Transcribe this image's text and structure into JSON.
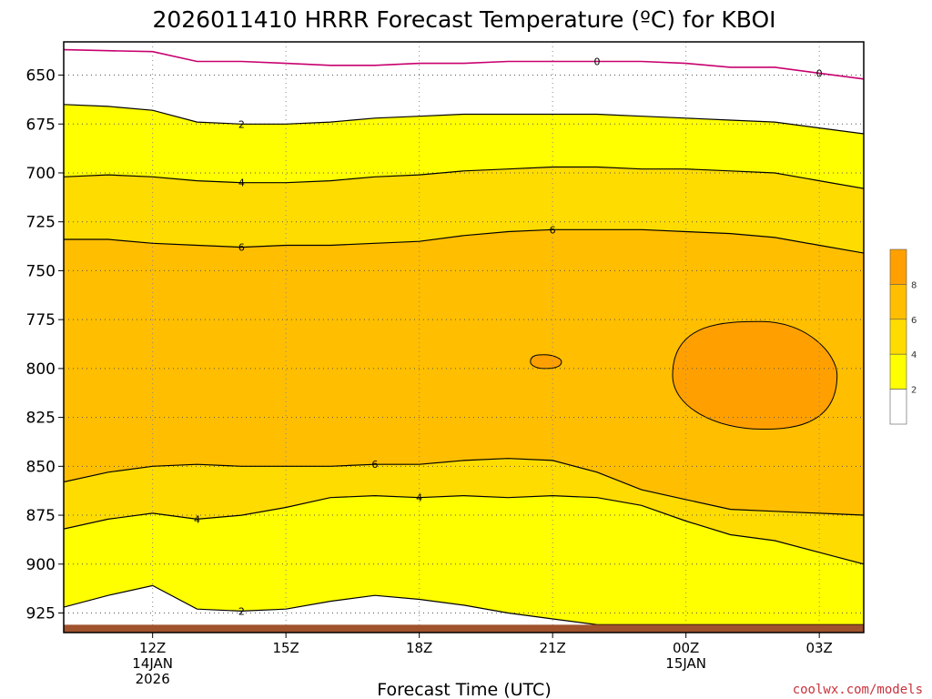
{
  "chart_data": {
    "type": "area",
    "title": "2026011410 HRRR Forecast Temperature (ºC) for KBOI",
    "xlabel": "Forecast Time (UTC)",
    "credit": "coolwx.com/models",
    "x_hours": [
      10,
      11,
      12,
      13,
      14,
      15,
      16,
      17,
      18,
      19,
      20,
      21,
      22,
      23,
      24,
      25,
      26,
      27
    ],
    "xlim": [
      10,
      28
    ],
    "x_ticks": [
      {
        "hour": 12,
        "lines": [
          "12Z",
          "14JAN",
          "2026"
        ]
      },
      {
        "hour": 15,
        "lines": [
          "15Z"
        ]
      },
      {
        "hour": 18,
        "lines": [
          "18Z"
        ]
      },
      {
        "hour": 21,
        "lines": [
          "21Z"
        ]
      },
      {
        "hour": 24,
        "lines": [
          "00Z",
          "15JAN"
        ]
      },
      {
        "hour": 27,
        "lines": [
          "03Z"
        ]
      }
    ],
    "ylim": [
      633,
      935
    ],
    "y_ticks": [
      650,
      675,
      700,
      725,
      750,
      775,
      800,
      825,
      850,
      875,
      900,
      925
    ],
    "ground_top_hPa": 931,
    "colors": {
      "below_2": "#ffffff",
      "2_to_4": "#ffff00",
      "4_to_6": "#ffdc00",
      "6_to_8": "#ffbe00",
      "above_8": "#ffa000",
      "ground": "#a0522d",
      "freezing_line": "#c8006e",
      "contour_line": "#000000"
    },
    "isotherms": [
      {
        "level": 0,
        "pressures": [
          637,
          637.5,
          638,
          643,
          643,
          644,
          645,
          645,
          644,
          644,
          643,
          643,
          643,
          643,
          644,
          646,
          646,
          649
        ],
        "labels": [
          {
            "hour": 22,
            "text": "0"
          },
          {
            "hour": 27,
            "text": "0"
          }
        ]
      },
      {
        "level": 2,
        "pressures": [
          665,
          666,
          668,
          674,
          675,
          675,
          674,
          672,
          671,
          670,
          670,
          670,
          670,
          671,
          672,
          673,
          674,
          677
        ],
        "labels": [
          {
            "hour": 14,
            "text": "2"
          }
        ]
      },
      {
        "level": 4,
        "pressures": [
          702,
          701,
          702,
          704,
          705,
          705,
          704,
          702,
          701,
          699,
          698,
          697,
          697,
          698,
          698,
          699,
          700,
          704
        ],
        "labels": [
          {
            "hour": 14,
            "text": "4"
          }
        ]
      },
      {
        "level": 6,
        "pressures": [
          734,
          734,
          736,
          737,
          738,
          737,
          737,
          736,
          735,
          732,
          730,
          729,
          729,
          729,
          730,
          731,
          733,
          737
        ],
        "labels": [
          {
            "hour": 14,
            "text": "6"
          },
          {
            "hour": 21,
            "text": "6"
          }
        ]
      },
      {
        "level": 6,
        "pressures": [
          858,
          853,
          850,
          849,
          850,
          850,
          850,
          849,
          849,
          847,
          846,
          847,
          853,
          862,
          867,
          872,
          873,
          874
        ],
        "labels": [
          {
            "hour": 17,
            "text": "6"
          }
        ]
      },
      {
        "level": 4,
        "pressures": [
          882,
          877,
          874,
          877,
          875,
          871,
          866,
          865,
          866,
          865,
          866,
          865,
          866,
          870,
          878,
          885,
          888,
          894
        ],
        "labels": [
          {
            "hour": 13,
            "text": "4"
          },
          {
            "hour": 18,
            "text": "4"
          }
        ]
      },
      {
        "level": 2,
        "pressures": [
          922,
          916,
          911,
          923,
          924,
          923,
          919,
          916,
          918,
          921,
          925,
          928,
          931,
          931,
          931,
          931,
          931,
          931
        ],
        "labels": [
          {
            "hour": 14,
            "text": "2"
          }
        ]
      }
    ],
    "warm_cores": [
      {
        "level": 8,
        "peak_hour": 25.7,
        "top_hPa": 776,
        "bottom_hPa": 831,
        "start_hour": 23.7,
        "end_hour": 27.4
      },
      {
        "level": 8,
        "peak_hour": 20.8,
        "top_hPa": 793,
        "bottom_hPa": 800,
        "start_hour": 20.5,
        "end_hour": 21.2
      }
    ],
    "legend": {
      "levels": [
        2,
        4,
        6,
        8
      ]
    }
  }
}
